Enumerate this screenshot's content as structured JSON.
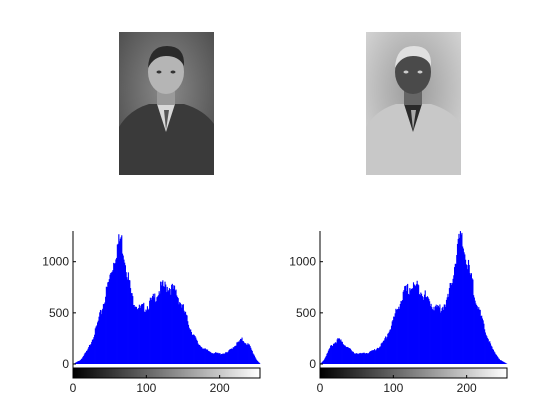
{
  "figure": {
    "images": [
      {
        "name": "original-portrait",
        "description": "grayscale photograph"
      },
      {
        "name": "negative-portrait",
        "description": "inverted grayscale photograph"
      }
    ]
  },
  "chart_data": [
    {
      "type": "bar",
      "title": "",
      "xlabel": "",
      "ylabel": "",
      "xlim": [
        0,
        255
      ],
      "ylim": [
        0,
        1300
      ],
      "xticks": [
        0,
        100,
        200
      ],
      "yticks": [
        0,
        500,
        1000
      ],
      "colorbar": "gray",
      "bar_color": "#0000ff",
      "x": [
        0,
        10,
        20,
        30,
        40,
        50,
        60,
        65,
        70,
        80,
        90,
        100,
        110,
        120,
        130,
        140,
        150,
        160,
        170,
        180,
        190,
        200,
        210,
        220,
        230,
        240,
        250,
        255
      ],
      "values": [
        0,
        40,
        140,
        320,
        560,
        850,
        1150,
        1230,
        1050,
        650,
        540,
        560,
        640,
        750,
        760,
        700,
        540,
        340,
        200,
        140,
        110,
        100,
        110,
        180,
        240,
        180,
        40,
        0
      ]
    },
    {
      "type": "bar",
      "title": "",
      "xlabel": "",
      "ylabel": "",
      "xlim": [
        0,
        255
      ],
      "ylim": [
        0,
        1300
      ],
      "xticks": [
        0,
        100,
        200
      ],
      "yticks": [
        0,
        500,
        1000
      ],
      "colorbar": "gray",
      "bar_color": "#0000ff",
      "x": [
        0,
        5,
        15,
        25,
        35,
        45,
        55,
        65,
        75,
        85,
        95,
        105,
        115,
        125,
        135,
        145,
        155,
        165,
        175,
        185,
        190,
        195,
        205,
        215,
        225,
        235,
        245,
        255
      ],
      "values": [
        0,
        40,
        180,
        240,
        180,
        110,
        100,
        110,
        140,
        200,
        340,
        540,
        700,
        760,
        750,
        640,
        560,
        540,
        650,
        1050,
        1230,
        1150,
        850,
        560,
        320,
        140,
        40,
        0
      ]
    }
  ]
}
